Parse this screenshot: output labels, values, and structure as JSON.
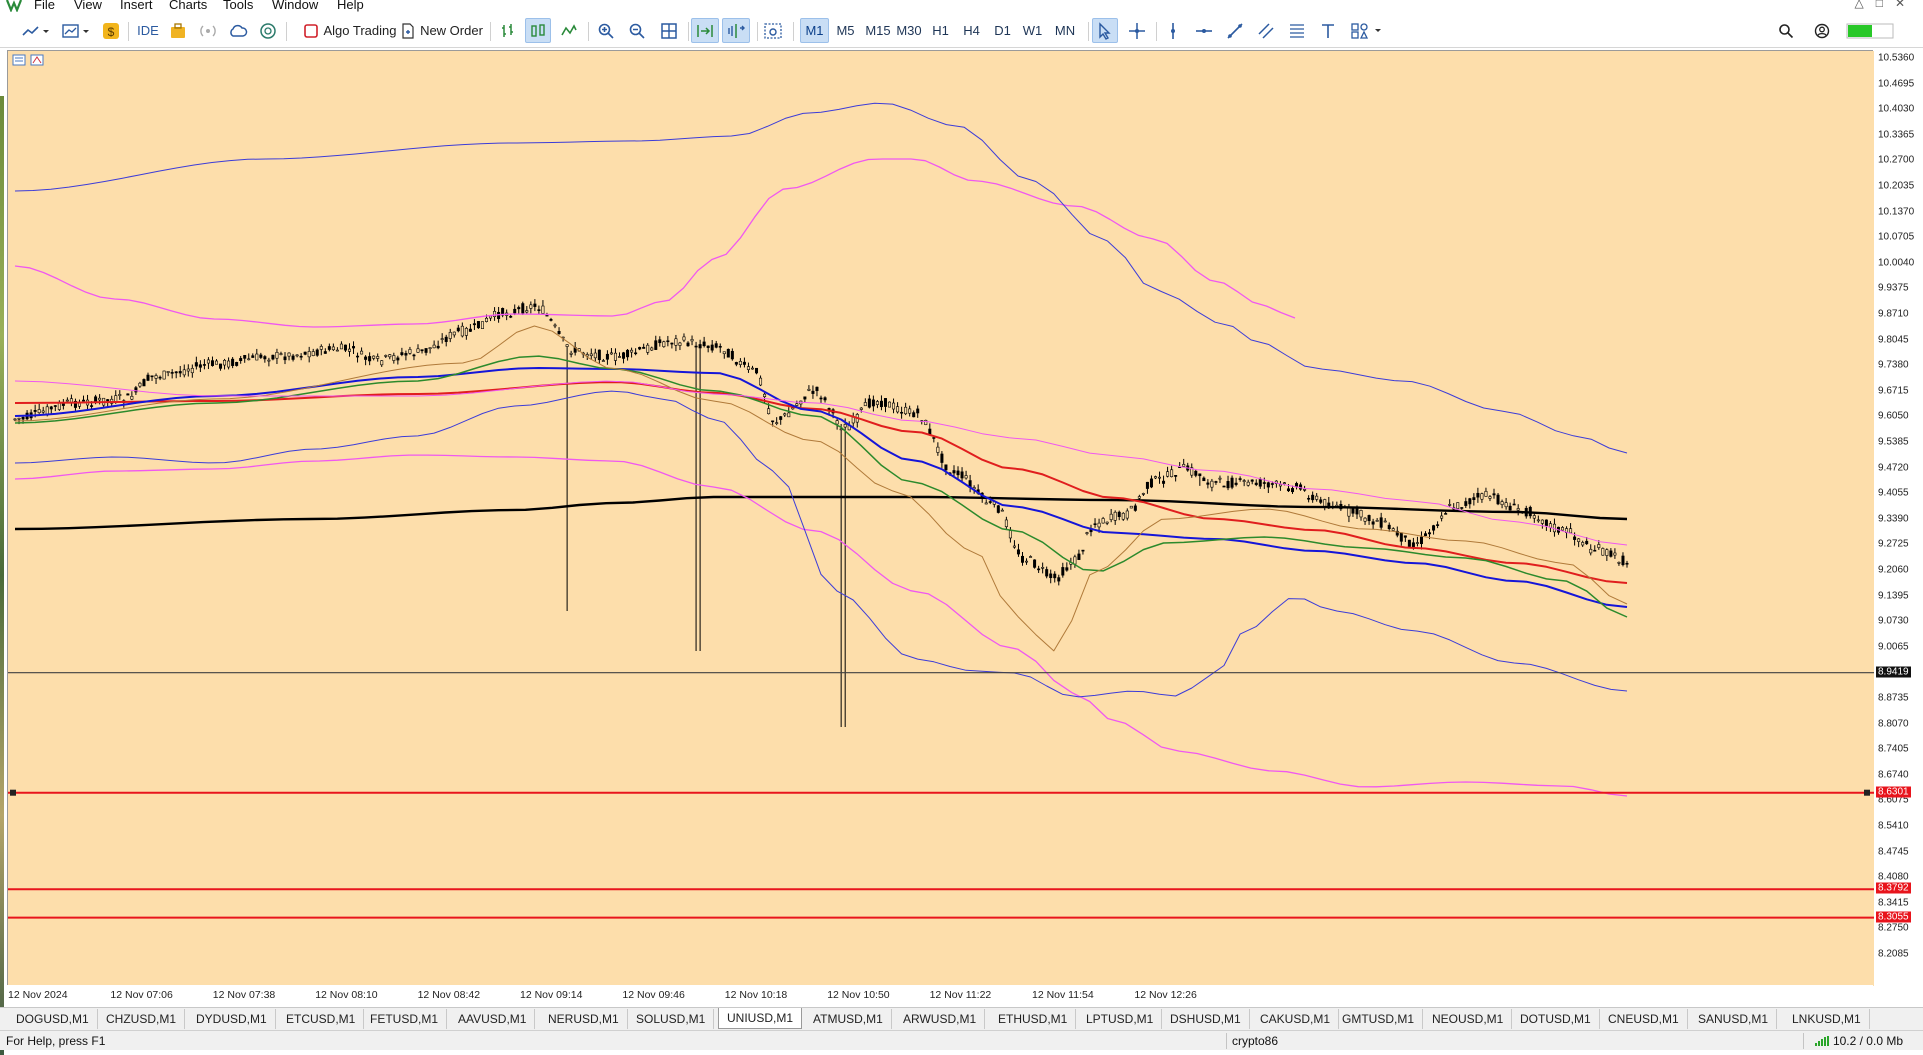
{
  "menu": {
    "items": [
      "File",
      "View",
      "Insert",
      "Charts",
      "Tools",
      "Window",
      "Help"
    ]
  },
  "toolbar": {
    "ide_label": "IDE",
    "algo_trading_label": "Algo Trading",
    "new_order_label": "New Order",
    "timeframes": [
      "M1",
      "M5",
      "M15",
      "M30",
      "H1",
      "H4",
      "D1",
      "W1",
      "MN"
    ],
    "active_timeframe": "M1"
  },
  "chart": {
    "symbol": "UNIUSD,M1",
    "price_axis": [
      "10.5360",
      "10.4695",
      "10.4030",
      "10.3365",
      "10.2700",
      "10.2035",
      "10.1370",
      "10.0705",
      "10.0040",
      "9.9375",
      "9.8710",
      "9.8045",
      "9.7380",
      "9.6715",
      "9.6050",
      "9.5385",
      "9.4720",
      "9.4055",
      "9.3390",
      "9.2725",
      "9.2060",
      "9.1395",
      "9.0730",
      "9.0065",
      "8.8735",
      "8.8070",
      "8.7405",
      "8.6740",
      "8.6075",
      "8.5410",
      "8.4745",
      "8.4080",
      "8.3415",
      "8.2750",
      "8.2085"
    ],
    "time_axis": [
      "12 Nov 2024",
      "12 Nov 07:06",
      "12 Nov 07:38",
      "12 Nov 08:10",
      "12 Nov 08:42",
      "12 Nov 09:14",
      "12 Nov 09:46",
      "12 Nov 10:18",
      "12 Nov 10:50",
      "12 Nov 11:22",
      "12 Nov 11:54",
      "12 Nov 12:26"
    ],
    "bid_price": "8.9419",
    "levels": [
      {
        "price": "8.6301",
        "color": "#e8141c"
      },
      {
        "price": "8.3792",
        "color": "#e8141c"
      },
      {
        "price": "8.3055",
        "color": "#e8141c"
      }
    ],
    "colors": {
      "background": "#fddeab",
      "candles": "#000000",
      "ma_red": "#e01e1e",
      "ma_blue": "#1515d8",
      "ma_green": "#2c8a2c",
      "ma_black": "#000000",
      "bands_magenta": "#f058f0",
      "bands_blue": "#3c3cd8",
      "ma_brown": "#b07a3a"
    }
  },
  "tabs": {
    "items": [
      "DOGUSD,M1",
      "CHZUSD,M1",
      "DYDUSD,M1",
      "ETCUSD,M1",
      "FETUSD,M1",
      "AAVUSD,M1",
      "NERUSD,M1",
      "SOLUSD,M1",
      "UNIUSD,M1",
      "ATMUSD,M1",
      "ARWUSD,M1",
      "ETHUSD,M1",
      "LPTUSD,M1",
      "DSHUSD,M1",
      "CAKUSD,M1",
      "GMTUSD,M1",
      "NEOUSD,M1",
      "DOTUSD,M1",
      "CNEUSD,M1",
      "SANUSD,M1",
      "LNKUSD,M1"
    ],
    "active": "UNIUSD,M1"
  },
  "status": {
    "help": "For Help, press F1",
    "profile": "crypto86",
    "traffic": "10.2 / 0.0 Mb"
  }
}
